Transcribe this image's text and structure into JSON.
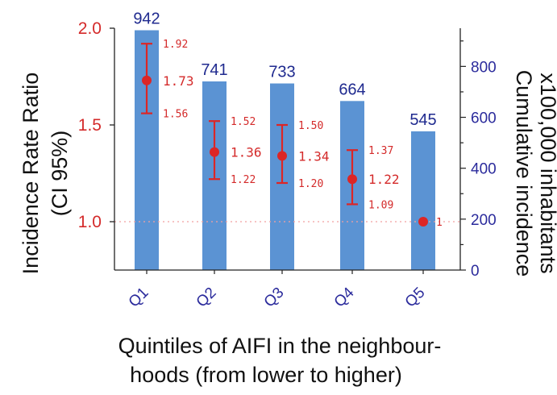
{
  "chart_data": {
    "type": "bar",
    "categories": [
      "Q1",
      "Q2",
      "Q3",
      "Q4",
      "Q5"
    ],
    "bars": {
      "values": [
        942,
        741,
        733,
        664,
        545
      ],
      "labels": [
        "942",
        "741",
        "733",
        "664",
        "545"
      ],
      "color": "#5b93d3"
    },
    "irr": {
      "values": [
        1.73,
        1.36,
        1.34,
        1.22,
        1
      ],
      "lower": [
        1.56,
        1.22,
        1.2,
        1.09,
        null
      ],
      "upper": [
        1.92,
        1.52,
        1.5,
        1.37,
        null
      ],
      "value_labels": [
        "1.73",
        "1.36",
        "1.34",
        "1.22",
        "1"
      ],
      "lower_labels": [
        "1.56",
        "1.22",
        "1.20",
        "1.09",
        ""
      ],
      "upper_labels": [
        "1.92",
        "1.52",
        "1.50",
        "1.37",
        ""
      ],
      "color": "#dc2626"
    },
    "y_left": {
      "label_line1": "Incidence Rate Ratio",
      "label_line2": "(CI 95%)",
      "ylim": [
        0.75,
        2.0
      ],
      "ticks": [
        1.0,
        1.5,
        2.0
      ],
      "tick_labels": [
        "1.0",
        "1.5",
        "2.0"
      ],
      "color": "#dc2626"
    },
    "y_right": {
      "label_line1": "Cumulative incidence",
      "label_line2": "x100,000 inhabitants",
      "ylim": [
        0,
        950
      ],
      "ticks": [
        0,
        200,
        400,
        600,
        800
      ],
      "tick_labels": [
        "0",
        "200",
        "400",
        "600",
        "800"
      ],
      "color": "#2b2b9c"
    },
    "x_label_line1": "Quintiles of AIFI in the neighbour-",
    "x_label_line2": "hoods (from lower to higher)",
    "reference_line": 1.0
  }
}
